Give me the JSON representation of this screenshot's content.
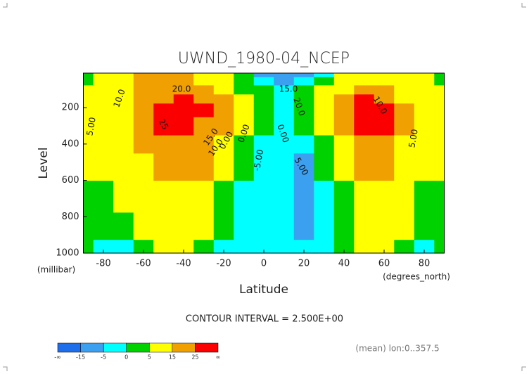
{
  "chart_data": {
    "type": "contour",
    "title": "UWND_1980-04_NCEP",
    "ylabel": "Level",
    "yunit": "(millibar)",
    "xlabel": "Latitude",
    "xunit": "(degrees_north)",
    "note": "CONTOUR INTERVAL = 2.500E+00",
    "footer": "(mean) lon:0..357.5",
    "xlim": [
      -90,
      90
    ],
    "xticks": [
      -80,
      -60,
      -40,
      -20,
      0,
      20,
      40,
      60,
      80
    ],
    "ylim": [
      1000,
      10
    ],
    "yticks": [
      200,
      400,
      600,
      800,
      1000
    ],
    "x": [
      -90,
      -80,
      -70,
      -60,
      -50,
      -40,
      -30,
      -20,
      -10,
      0,
      10,
      20,
      30,
      40,
      50,
      60,
      70,
      80,
      90
    ],
    "y": [
      1000,
      850,
      700,
      500,
      400,
      300,
      200,
      150,
      100,
      50,
      10
    ],
    "z": [
      [
        1,
        -1,
        -1,
        3,
        6,
        8,
        4,
        -1,
        -4,
        -4,
        -3,
        -3,
        -2,
        2,
        5,
        6,
        3,
        -1,
        1
      ],
      [
        3,
        1,
        2,
        6,
        10,
        11,
        7,
        1,
        -3,
        -3,
        -4,
        -6,
        -3,
        2,
        7,
        9,
        5,
        1,
        2
      ],
      [
        4,
        4,
        5,
        10,
        14,
        14,
        10,
        3,
        -1,
        -3,
        -5,
        -7,
        -2,
        4,
        10,
        12,
        7,
        4,
        3
      ],
      [
        6,
        7,
        9,
        14,
        19,
        19,
        15,
        8,
        2,
        -2,
        -4,
        -6,
        1,
        9,
        16,
        16,
        11,
        7,
        5
      ],
      [
        7,
        8,
        11,
        17,
        22,
        23,
        19,
        12,
        4,
        -1,
        -3,
        -3,
        3,
        13,
        21,
        20,
        14,
        9,
        6
      ],
      [
        8,
        9,
        13,
        20,
        26,
        27,
        24,
        17,
        6,
        0,
        -2,
        0,
        7,
        19,
        28,
        25,
        17,
        11,
        7
      ],
      [
        7,
        9,
        14,
        21,
        27,
        28,
        27,
        20,
        7,
        1,
        -1,
        2,
        10,
        23,
        30,
        26,
        17,
        11,
        6
      ],
      [
        6,
        9,
        13,
        19,
        24,
        25,
        23,
        16,
        5,
        1,
        -1,
        2,
        8,
        20,
        26,
        22,
        14,
        10,
        5
      ],
      [
        5,
        8,
        12,
        17,
        20,
        20,
        18,
        12,
        3,
        0,
        -2,
        0,
        5,
        14,
        18,
        16,
        12,
        9,
        5
      ],
      [
        4,
        8,
        11,
        15,
        18,
        17,
        14,
        8,
        1,
        -3,
        -6,
        -4,
        1,
        8,
        12,
        12,
        10,
        7,
        4
      ],
      [
        4,
        8,
        12,
        16,
        20,
        18,
        13,
        6,
        0,
        -6,
        -12,
        -8,
        -2,
        6,
        10,
        12,
        10,
        6,
        3
      ]
    ],
    "contour_labels": [
      "10.0",
      "20.0",
      "5.00",
      "25",
      "15.0",
      "10.0",
      "0.00",
      "0.00",
      "0.00",
      "-5.00",
      "15.0",
      "20.0",
      "5.00",
      "10.0",
      "5.00"
    ],
    "colorbar": {
      "ticks": [
        "-∞",
        -15,
        -5,
        0,
        5,
        15,
        25,
        "∞"
      ],
      "colors": [
        "#1e6eeb",
        "#3ca0f0",
        "#00ffff",
        "#00d200",
        "#ffff00",
        "#f0a000",
        "#fa0000"
      ]
    }
  }
}
